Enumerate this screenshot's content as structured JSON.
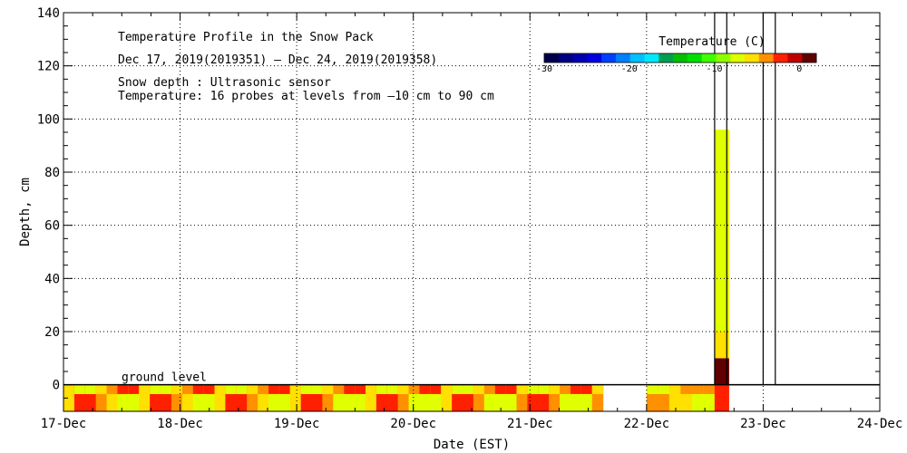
{
  "chart_data": {
    "type": "heatmap",
    "title": "Temperature Profile in the Snow Pack",
    "subtitle": "Dec 17, 2019(2019351) – Dec 24, 2019(2019358)",
    "note_depth": "Snow depth : Ultrasonic sensor",
    "note_temp": "Temperature: 16 probes at levels from –10 cm to 90 cm",
    "xlabel": "Date (EST)",
    "ylabel": "Depth, cm",
    "x_ticks": [
      "17-Dec",
      "18-Dec",
      "19-Dec",
      "20-Dec",
      "21-Dec",
      "22-Dec",
      "23-Dec",
      "24-Dec"
    ],
    "y_ticks": [
      0,
      20,
      40,
      60,
      80,
      100,
      120,
      140
    ],
    "xlim": [
      "17-Dec",
      "24-Dec"
    ],
    "ylim": [
      -10,
      140
    ],
    "grid": true,
    "annotation": "ground level",
    "colorbar": {
      "label": "Temperature (C)",
      "ticks": [
        -30,
        -20,
        -10,
        0
      ],
      "range": [
        -30,
        2
      ],
      "colors": [
        "#00004a",
        "#000080",
        "#0000b0",
        "#0000e0",
        "#0040ff",
        "#0080ff",
        "#00c0ff",
        "#00e8ff",
        "#00a050",
        "#00c000",
        "#00e000",
        "#40ff00",
        "#90ff00",
        "#e0ff00",
        "#ffe000",
        "#ff9000",
        "#ff2000",
        "#c00000",
        "#600000"
      ]
    },
    "snow_depth_series": {
      "name": "Snow depth",
      "x": [
        "22-Dec 14:00",
        "22-Dec 14:00",
        "22-Dec 16:30",
        "22-Dec 16:30",
        "23-Dec 00:00",
        "23-Dec 00:00",
        "23-Dec 02:30",
        "23-Dec 02:30",
        "24-Dec 00:00"
      ],
      "y": [
        0,
        140,
        140,
        0,
        0,
        140,
        140,
        0,
        0
      ]
    },
    "temperature_bands": [
      {
        "start": "17-Dec 00:00",
        "end": "21-Dec 15:00",
        "depth_range": [
          -10,
          0
        ],
        "temperature_range": [
          -8,
          -2
        ]
      },
      {
        "start": "22-Dec 00:00",
        "end": "22-Dec 14:00",
        "depth_range": [
          -10,
          0
        ],
        "temperature_range": [
          -7,
          -4
        ]
      },
      {
        "start": "22-Dec 14:00",
        "end": "22-Dec 17:00",
        "depth_range": [
          -10,
          0
        ],
        "temperature": -3
      },
      {
        "start": "22-Dec 14:00",
        "end": "22-Dec 17:00",
        "depth_range": [
          0,
          10
        ],
        "temperature": 1
      },
      {
        "start": "22-Dec 14:00",
        "end": "22-Dec 17:00",
        "depth_range": [
          10,
          20
        ],
        "temperature": -5
      },
      {
        "start": "22-Dec 14:00",
        "end": "22-Dec 17:00",
        "depth_range": [
          20,
          96
        ],
        "temperature": -7
      }
    ]
  }
}
